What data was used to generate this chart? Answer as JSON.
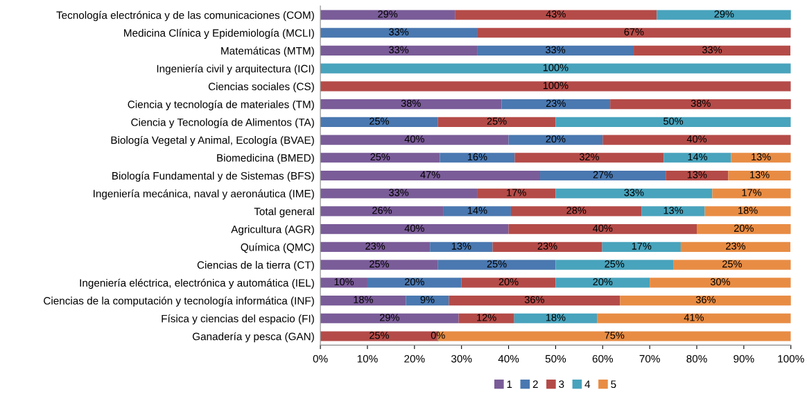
{
  "chart_data": {
    "type": "bar",
    "orientation": "horizontal",
    "stacked": true,
    "legend": "bottom",
    "grid": false,
    "categories": [
      "Tecnología electrónica y de las comunicaciones (COM)",
      "Medicina Clínica y Epidemiología (MCLI)",
      "Matemáticas (MTM)",
      "Ingeniería civil y arquitectura (ICI)",
      "Ciencias sociales (CS)",
      "Ciencia y tecnología de materiales (TM)",
      "Ciencia y Tecnología de Alimentos (TA)",
      "Biología Vegetal y Animal, Ecología (BVAE)",
      "Biomedicina (BMED)",
      "Biología Fundamental y de Sistemas (BFS)",
      "Ingeniería mecánica, naval y aeronáutica (IME)",
      "Total general",
      "Agricultura (AGR)",
      "Química (QMC)",
      "Ciencias de la tierra (CT)",
      "Ingeniería eléctrica, electrónica y automática (IEL)",
      "Ciencias de la computación y tecnología informática (INF)",
      "Física y ciencias del espacio (FI)",
      "Ganadería y pesca (GAN)"
    ],
    "xlim": [
      0,
      100
    ],
    "xticks": [
      {
        "value": 0,
        "label": "0%"
      },
      {
        "value": 10,
        "label": "10%"
      },
      {
        "value": 20,
        "label": "20%"
      },
      {
        "value": 30,
        "label": "30%"
      },
      {
        "value": 40,
        "label": "40%"
      },
      {
        "value": 50,
        "label": "50%"
      },
      {
        "value": 60,
        "label": "60%"
      },
      {
        "value": 70,
        "label": "70%"
      },
      {
        "value": 80,
        "label": "80%"
      },
      {
        "value": 90,
        "label": "90%"
      },
      {
        "value": 100,
        "label": "100%"
      }
    ],
    "series": [
      {
        "name": "1",
        "color": "#7a5c98",
        "values": [
          28.6,
          null,
          33.3,
          null,
          null,
          38.5,
          null,
          40,
          25.4,
          46.7,
          33.3,
          26.2,
          40,
          23.3,
          25,
          10,
          18.2,
          29.4,
          null
        ],
        "value_labels": [
          "29%",
          null,
          "33%",
          null,
          null,
          "38%",
          null,
          "40%",
          "25%",
          "47%",
          "33%",
          "26%",
          "40%",
          "23%",
          "25%",
          "10%",
          "18%",
          "29%",
          null
        ]
      },
      {
        "name": "2",
        "color": "#4a78b0",
        "values": [
          null,
          33.3,
          33.3,
          null,
          null,
          23.1,
          25,
          20,
          15.9,
          26.7,
          null,
          14.3,
          null,
          13.3,
          25,
          20,
          9.1,
          null,
          null
        ],
        "value_labels": [
          null,
          "33%",
          "33%",
          null,
          null,
          "23%",
          "25%",
          "20%",
          "16%",
          "27%",
          null,
          "14%",
          null,
          "13%",
          "25%",
          "20%",
          "9%",
          null,
          null
        ]
      },
      {
        "name": "3",
        "color": "#b44b48",
        "values": [
          42.9,
          66.7,
          33.3,
          null,
          100,
          38.5,
          25,
          40,
          31.7,
          13.3,
          16.7,
          27.8,
          40,
          23.3,
          null,
          20,
          36.4,
          11.8,
          25
        ],
        "value_labels": [
          "43%",
          "67%",
          "33%",
          null,
          "100%",
          "38%",
          "25%",
          "40%",
          "32%",
          "13%",
          "17%",
          "28%",
          "40%",
          "23%",
          null,
          "20%",
          "36%",
          "12%",
          "25%"
        ]
      },
      {
        "name": "4",
        "color": "#48a3bc",
        "values": [
          28.6,
          null,
          null,
          100,
          null,
          null,
          50,
          null,
          14.3,
          null,
          33.3,
          13.4,
          null,
          16.7,
          25,
          20,
          null,
          17.6,
          0
        ],
        "value_labels": [
          "29%",
          null,
          null,
          "100%",
          null,
          null,
          "50%",
          null,
          "14%",
          null,
          "33%",
          "13%",
          null,
          "17%",
          "25%",
          "20%",
          null,
          "18%",
          "0%"
        ]
      },
      {
        "name": "5",
        "color": "#e88c44",
        "values": [
          null,
          null,
          null,
          null,
          null,
          null,
          null,
          null,
          12.7,
          13.3,
          16.7,
          18.3,
          20,
          23.3,
          25,
          30,
          36.4,
          41.2,
          75
        ],
        "value_labels": [
          null,
          null,
          null,
          null,
          null,
          null,
          null,
          null,
          "13%",
          "13%",
          "17%",
          "18%",
          "20%",
          "23%",
          "25%",
          "30%",
          "36%",
          "41%",
          "75%"
        ]
      }
    ]
  }
}
